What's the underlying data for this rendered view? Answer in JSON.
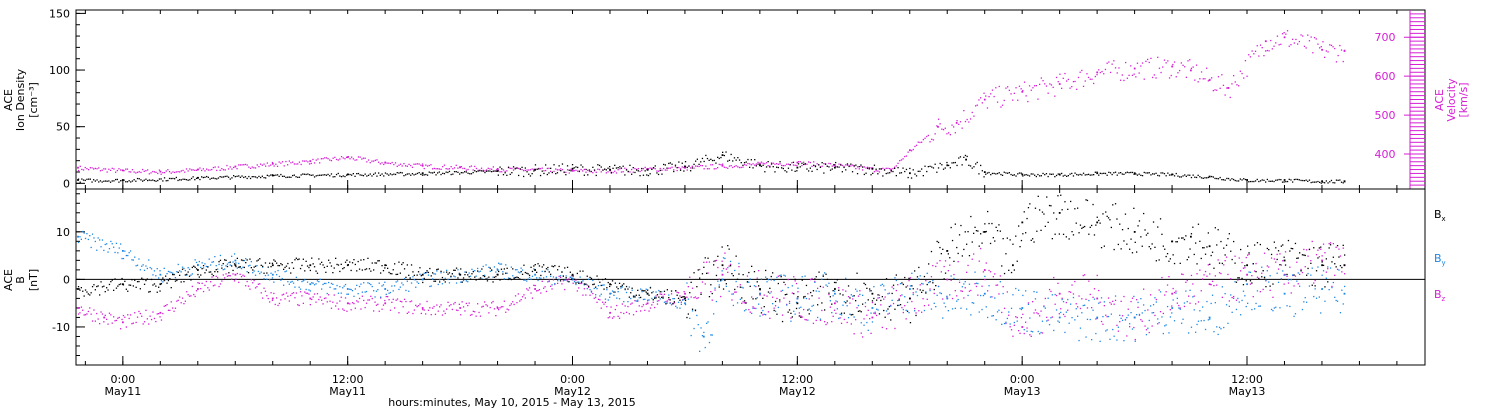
{
  "footer_label": "hours:minutes, May 10, 2015 - May 13, 2015",
  "colors": {
    "black": "#000000",
    "magenta": "#d61ed6",
    "blue": "#1e88e5"
  },
  "chart_data": [
    {
      "type": "scatter",
      "panel": "top",
      "left_ylabel": [
        "ACE",
        "Ion Density",
        "[cm⁻³]"
      ],
      "right_ylabel": [
        "ACE",
        "Velocity",
        "[km/s]"
      ],
      "x_ticks": [
        {
          "hour": 0,
          "line1": "0:00",
          "line2": "May11"
        },
        {
          "hour": 12,
          "line1": "12:00",
          "line2": "May11"
        },
        {
          "hour": 24,
          "line1": "0:00",
          "line2": "May12"
        },
        {
          "hour": 36,
          "line1": "12:00",
          "line2": "May12"
        },
        {
          "hour": 48,
          "line1": "0:00",
          "line2": "May13"
        },
        {
          "hour": 60,
          "line1": "12:00",
          "line2": "May13"
        }
      ],
      "xlim": [
        -2.5,
        69.5
      ],
      "ylim_left": [
        -5,
        153
      ],
      "yticks_left": [
        0,
        50,
        100,
        150
      ],
      "ylim_right": [
        310,
        770
      ],
      "yticks_right": [
        400,
        500,
        600,
        700
      ],
      "series": [
        {
          "axis": "left",
          "color": "black",
          "hours": [
            -2.4,
            0,
            4,
            8,
            12,
            16,
            20,
            22,
            24,
            26,
            28,
            30,
            32,
            34,
            36,
            38,
            40,
            42,
            44,
            45,
            46,
            48,
            50,
            52,
            54,
            56,
            58,
            60,
            62,
            64,
            65.2
          ],
          "values": [
            3,
            3,
            5,
            7,
            8,
            9,
            11,
            12,
            13,
            12,
            12,
            15,
            25,
            16,
            14,
            14,
            13,
            9,
            16,
            21,
            10,
            8,
            8,
            9,
            9,
            8,
            6,
            3,
            3,
            2,
            2
          ]
        },
        {
          "axis": "right",
          "color": "magenta",
          "hours": [
            -2.4,
            0,
            2,
            4,
            6,
            8,
            10,
            12,
            14,
            16,
            18,
            20,
            22,
            24,
            26,
            28,
            30,
            32,
            34,
            36,
            38,
            40,
            41,
            42,
            43.5,
            44.5,
            46,
            48,
            50,
            52,
            54,
            56,
            57,
            58,
            59,
            61,
            62,
            64,
            65.2
          ],
          "values": [
            365,
            358,
            355,
            360,
            368,
            375,
            382,
            392,
            378,
            370,
            366,
            362,
            360,
            357,
            358,
            362,
            365,
            370,
            375,
            378,
            372,
            362,
            360,
            410,
            470,
            480,
            540,
            560,
            580,
            610,
            620,
            625,
            615,
            590,
            570,
            690,
            700,
            668,
            665
          ]
        }
      ]
    },
    {
      "type": "scatter",
      "panel": "bottom",
      "left_ylabel": [
        "ACE",
        "B",
        "[nT]"
      ],
      "xlim": [
        -2.5,
        69.5
      ],
      "ylim": [
        -18,
        19
      ],
      "yticks": [
        -10,
        0,
        10
      ],
      "zero_line": true,
      "series": [
        {
          "name": "B",
          "sub": "x",
          "color": "black",
          "hours": [
            -2.4,
            0,
            2,
            4,
            6,
            8,
            10,
            12,
            14,
            16,
            18,
            20,
            22,
            24,
            26,
            28,
            30,
            32,
            34,
            36,
            38,
            40,
            42,
            44,
            46,
            47.5,
            48,
            50,
            52,
            54,
            56,
            57,
            58,
            60,
            62,
            64,
            65.2
          ],
          "values": [
            -2,
            -1,
            -1,
            2,
            3,
            3,
            3,
            3,
            3,
            1,
            1,
            1,
            2,
            1,
            -1,
            -3,
            -4,
            3,
            -2,
            -5,
            -2,
            -3,
            -4,
            6,
            10,
            3,
            12,
            14,
            12,
            10,
            8,
            9,
            7,
            3,
            4,
            3,
            3
          ]
        },
        {
          "name": "B",
          "sub": "y",
          "color": "blue",
          "hours": [
            -2.4,
            0,
            2,
            4,
            6,
            8,
            10,
            12,
            14,
            16,
            18,
            20,
            22,
            24,
            26,
            28,
            30,
            31,
            32,
            34,
            36,
            38,
            40,
            42,
            44,
            46,
            48,
            50,
            52,
            54,
            56,
            58,
            60,
            62,
            64,
            65.2
          ],
          "values": [
            9,
            6,
            1,
            3,
            4,
            1,
            -1,
            -2,
            -2,
            0,
            1,
            2,
            1,
            0,
            -3,
            -3,
            -5,
            -12,
            0,
            -3,
            -4,
            -3,
            -6,
            -2,
            -4,
            -3,
            -6,
            -8,
            -8,
            -8,
            -6,
            -8,
            -1,
            -3,
            -2,
            -3
          ]
        },
        {
          "name": "B",
          "sub": "z",
          "color": "magenta",
          "hours": [
            -2.4,
            -1,
            0,
            2,
            4,
            6,
            8,
            10,
            12,
            14,
            16,
            18,
            20,
            22,
            24,
            26,
            28,
            30,
            32,
            34,
            36,
            38,
            40,
            42,
            44,
            46,
            48,
            50,
            52,
            54,
            56,
            58,
            60,
            62,
            64,
            65.2
          ],
          "values": [
            -6,
            -8,
            -9,
            -7,
            -2,
            1,
            -4,
            -4,
            -5,
            -5,
            -6,
            -6,
            -6,
            -2,
            0,
            -7,
            -5,
            -3,
            1,
            -3,
            -4,
            -5,
            -8,
            -4,
            0,
            2,
            -10,
            -3,
            -4,
            -8,
            -3,
            -1,
            1,
            1,
            4,
            3
          ]
        }
      ]
    }
  ]
}
